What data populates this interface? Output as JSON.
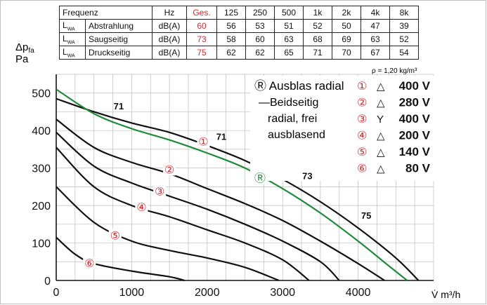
{
  "table": {
    "headers": [
      "Frequenz",
      "Hz",
      "Ges.",
      "125",
      "250",
      "500",
      "1k",
      "2k",
      "4k",
      "8k"
    ],
    "lwa": "L",
    "lwa_sub": "WA",
    "rows": [
      {
        "label": "Abstrahlung",
        "unit": "dB(A)",
        "total": "60",
        "values": [
          "56",
          "53",
          "51",
          "52",
          "50",
          "47",
          "39"
        ]
      },
      {
        "label": "Saugseitig",
        "unit": "dB(A)",
        "total": "73",
        "values": [
          "58",
          "60",
          "63",
          "68",
          "69",
          "63",
          "52"
        ]
      },
      {
        "label": "Druckseitig",
        "unit": "dB(A)",
        "total": "75",
        "values": [
          "62",
          "62",
          "65",
          "71",
          "70",
          "67",
          "54"
        ]
      }
    ]
  },
  "density_note": "ρ = 1,20 kg/m³",
  "colors": {
    "red": "#d2282e",
    "green": "#1f8a3a",
    "black": "#111111",
    "grid": "#bdbdbd"
  },
  "chart_data": {
    "type": "line",
    "ylabel_line1": "Δp",
    "ylabel_sub": "fa",
    "ylabel_line2": "Pa",
    "xlabel": "V̇  m³/h",
    "xlim": [
      0,
      5000
    ],
    "ylim": [
      0,
      550
    ],
    "x_ticks": [
      "0",
      "1000",
      "2000",
      "3000",
      "4000"
    ],
    "y_ticks": [
      "0",
      "100",
      "200",
      "300",
      "400",
      "500"
    ],
    "grid": true,
    "legend": {
      "green_label": "Ⓡ Ausblas radial",
      "black_label_lines": [
        "—Beidseitig",
        "radial, frei",
        "ausblasend"
      ],
      "entries": [
        {
          "marker": "①",
          "symbol": "△",
          "voltage": "400 V"
        },
        {
          "marker": "②",
          "symbol": "△",
          "voltage": "280 V"
        },
        {
          "marker": "③",
          "symbol": "Y",
          "voltage": "400 V"
        },
        {
          "marker": "④",
          "symbol": "△",
          "voltage": "200 V"
        },
        {
          "marker": "⑤",
          "symbol": "△",
          "voltage": "140 V"
        },
        {
          "marker": "⑥",
          "symbol": "△",
          "voltage": "80 V"
        }
      ]
    },
    "series": [
      {
        "id": "1",
        "color": "black",
        "x": [
          0,
          500,
          1000,
          1500,
          2000,
          2500,
          3000,
          3500,
          4000,
          4500,
          4800
        ],
        "y": [
          485,
          450,
          420,
          395,
          360,
          320,
          270,
          210,
          140,
          60,
          0
        ]
      },
      {
        "id": "R",
        "color": "green",
        "x": [
          0,
          500,
          1000,
          1500,
          2000,
          2500,
          3000,
          3500,
          4000,
          4400,
          4650
        ],
        "y": [
          510,
          445,
          405,
          375,
          340,
          300,
          245,
          180,
          105,
          40,
          0
        ]
      },
      {
        "id": "2",
        "color": "black",
        "x": [
          0,
          500,
          1000,
          1500,
          2000,
          2500,
          3000,
          3500,
          4000,
          4350
        ],
        "y": [
          430,
          355,
          315,
          285,
          245,
          205,
          160,
          105,
          45,
          0
        ]
      },
      {
        "id": "3",
        "color": "black",
        "x": [
          0,
          500,
          1000,
          1500,
          2000,
          2500,
          3000,
          3500,
          3750
        ],
        "y": [
          395,
          305,
          260,
          225,
          190,
          150,
          105,
          50,
          0
        ]
      },
      {
        "id": "4",
        "color": "black",
        "x": [
          0,
          500,
          1000,
          1500,
          2000,
          2500,
          3000,
          3350
        ],
        "y": [
          355,
          250,
          200,
          170,
          135,
          100,
          55,
          0
        ]
      },
      {
        "id": "5",
        "color": "black",
        "x": [
          0,
          500,
          1000,
          1500,
          2000,
          2500,
          2950
        ],
        "y": [
          250,
          155,
          105,
          80,
          60,
          35,
          0
        ]
      },
      {
        "id": "6",
        "color": "black",
        "x": [
          0,
          250,
          500,
          1000,
          1500,
          1700
        ],
        "y": [
          115,
          70,
          45,
          25,
          10,
          0
        ]
      }
    ],
    "series_markers": [
      {
        "marker": "①",
        "x": 1950,
        "y": 368,
        "color": "red"
      },
      {
        "marker": "②",
        "x": 1500,
        "y": 293,
        "color": "red"
      },
      {
        "marker": "③",
        "x": 1370,
        "y": 235,
        "color": "red"
      },
      {
        "marker": "④",
        "x": 1130,
        "y": 193,
        "color": "red"
      },
      {
        "marker": "⑤",
        "x": 780,
        "y": 117,
        "color": "red"
      },
      {
        "marker": "⑥",
        "x": 440,
        "y": 43,
        "color": "red"
      },
      {
        "marker": "Ⓡ",
        "x": 2700,
        "y": 270,
        "color": "green"
      }
    ],
    "annotations": [
      {
        "text": "71",
        "x": 760,
        "y": 456
      },
      {
        "text": "71",
        "x": 2120,
        "y": 375
      },
      {
        "text": "73",
        "x": 3260,
        "y": 270
      },
      {
        "text": "75",
        "x": 4040,
        "y": 165
      }
    ]
  }
}
